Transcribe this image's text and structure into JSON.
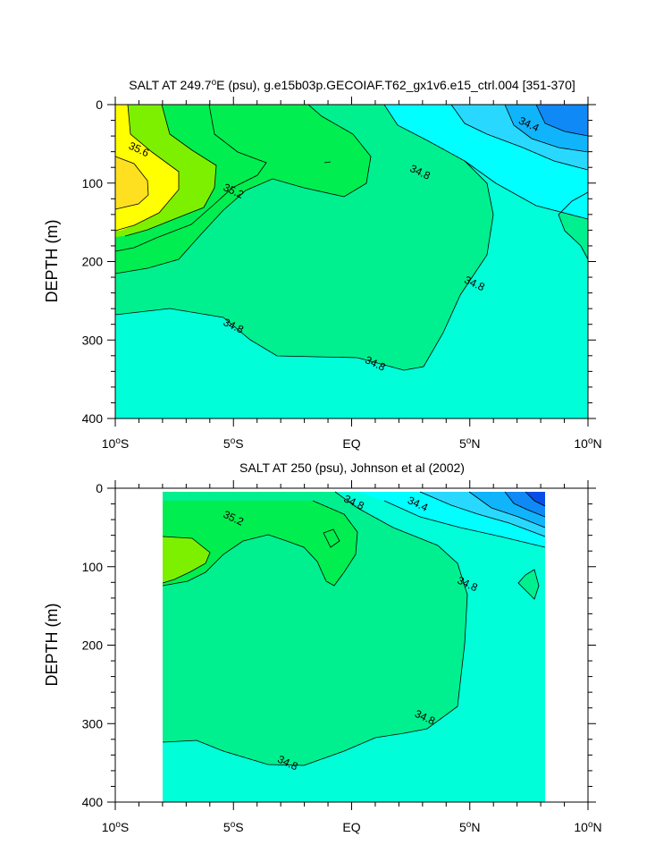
{
  "colors": {
    "c_342": "#0a4ee8",
    "c_344": "#0f89f5",
    "c_346": "#10b4fb",
    "c_348": "#29d8ff",
    "c_350": "#00ffff",
    "c_352": "#00ffd8",
    "c_354": "#00f08f",
    "c_356": "#00ee4f",
    "c_358": "#7df000",
    "c_360": "#ffff00",
    "c_362": "#ffe020"
  },
  "chart_data": [
    {
      "type": "contour",
      "title": "SALT AT 249.7",
      "title_sup": "o",
      "title_rest": "E (psu), g.e15b03p.GECOIAF.T62_gx1v6.e15_ctrl.004 [351-370]",
      "ylabel": "DEPTH (m)",
      "x_range": [
        -10,
        10
      ],
      "y_range": [
        0,
        400
      ],
      "y_reversed": true,
      "x_ticks": [
        {
          "value": -10,
          "num": "10",
          "sup": "o",
          "suf": "S"
        },
        {
          "value": -5,
          "num": "5",
          "sup": "o",
          "suf": "S"
        },
        {
          "value": 0,
          "num": "EQ",
          "sup": "",
          "suf": ""
        },
        {
          "value": 5,
          "num": "5",
          "sup": "o",
          "suf": "N"
        },
        {
          "value": 10,
          "num": "10",
          "sup": "o",
          "suf": "N"
        }
      ],
      "y_ticks": [
        0,
        100,
        200,
        300,
        400
      ],
      "contour_levels": [
        34.2,
        34.4,
        34.6,
        34.8,
        35.0,
        35.2,
        35.4,
        35.6,
        35.8
      ],
      "contour_labels": [
        {
          "text": "35.6",
          "x": -9.0,
          "y": 57
        },
        {
          "text": "35.2",
          "x": -5.0,
          "y": 110
        },
        {
          "text": "34.8",
          "x": 2.9,
          "y": 86
        },
        {
          "text": "34.4",
          "x": 7.5,
          "y": 25
        },
        {
          "text": "34.8",
          "x": 5.2,
          "y": 228
        },
        {
          "text": "34.8",
          "x": -5.0,
          "y": 282
        },
        {
          "text": "34.8",
          "x": 1.0,
          "y": 330
        }
      ]
    },
    {
      "type": "contour",
      "title": "SALT AT 250 (psu), Johnson et al (2002)",
      "title_sup": "",
      "title_rest": "",
      "ylabel": "DEPTH (m)",
      "x_range": [
        -10,
        10
      ],
      "y_range": [
        0,
        400
      ],
      "y_reversed": true,
      "data_x_extent": [
        -8,
        8.2
      ],
      "data_y_extent": [
        5,
        400
      ],
      "x_ticks": [
        {
          "value": -10,
          "num": "10",
          "sup": "o",
          "suf": "S"
        },
        {
          "value": -5,
          "num": "5",
          "sup": "o",
          "suf": "S"
        },
        {
          "value": 0,
          "num": "EQ",
          "sup": "",
          "suf": ""
        },
        {
          "value": 5,
          "num": "5",
          "sup": "o",
          "suf": "N"
        },
        {
          "value": 10,
          "num": "10",
          "sup": "o",
          "suf": "N"
        }
      ],
      "y_ticks": [
        0,
        100,
        200,
        300,
        400
      ],
      "contour_levels": [
        34.2,
        34.4,
        34.6,
        34.8,
        35.0,
        35.2,
        35.4
      ],
      "contour_labels": [
        {
          "text": "35.2",
          "x": -5.0,
          "y": 38
        },
        {
          "text": "34.8",
          "x": 0.1,
          "y": 18
        },
        {
          "text": "34.4",
          "x": 2.8,
          "y": 20
        },
        {
          "text": "34.8",
          "x": 4.9,
          "y": 122
        },
        {
          "text": "34.8",
          "x": 3.1,
          "y": 292
        },
        {
          "text": "34.8",
          "x": -2.7,
          "y": 350
        }
      ]
    }
  ]
}
